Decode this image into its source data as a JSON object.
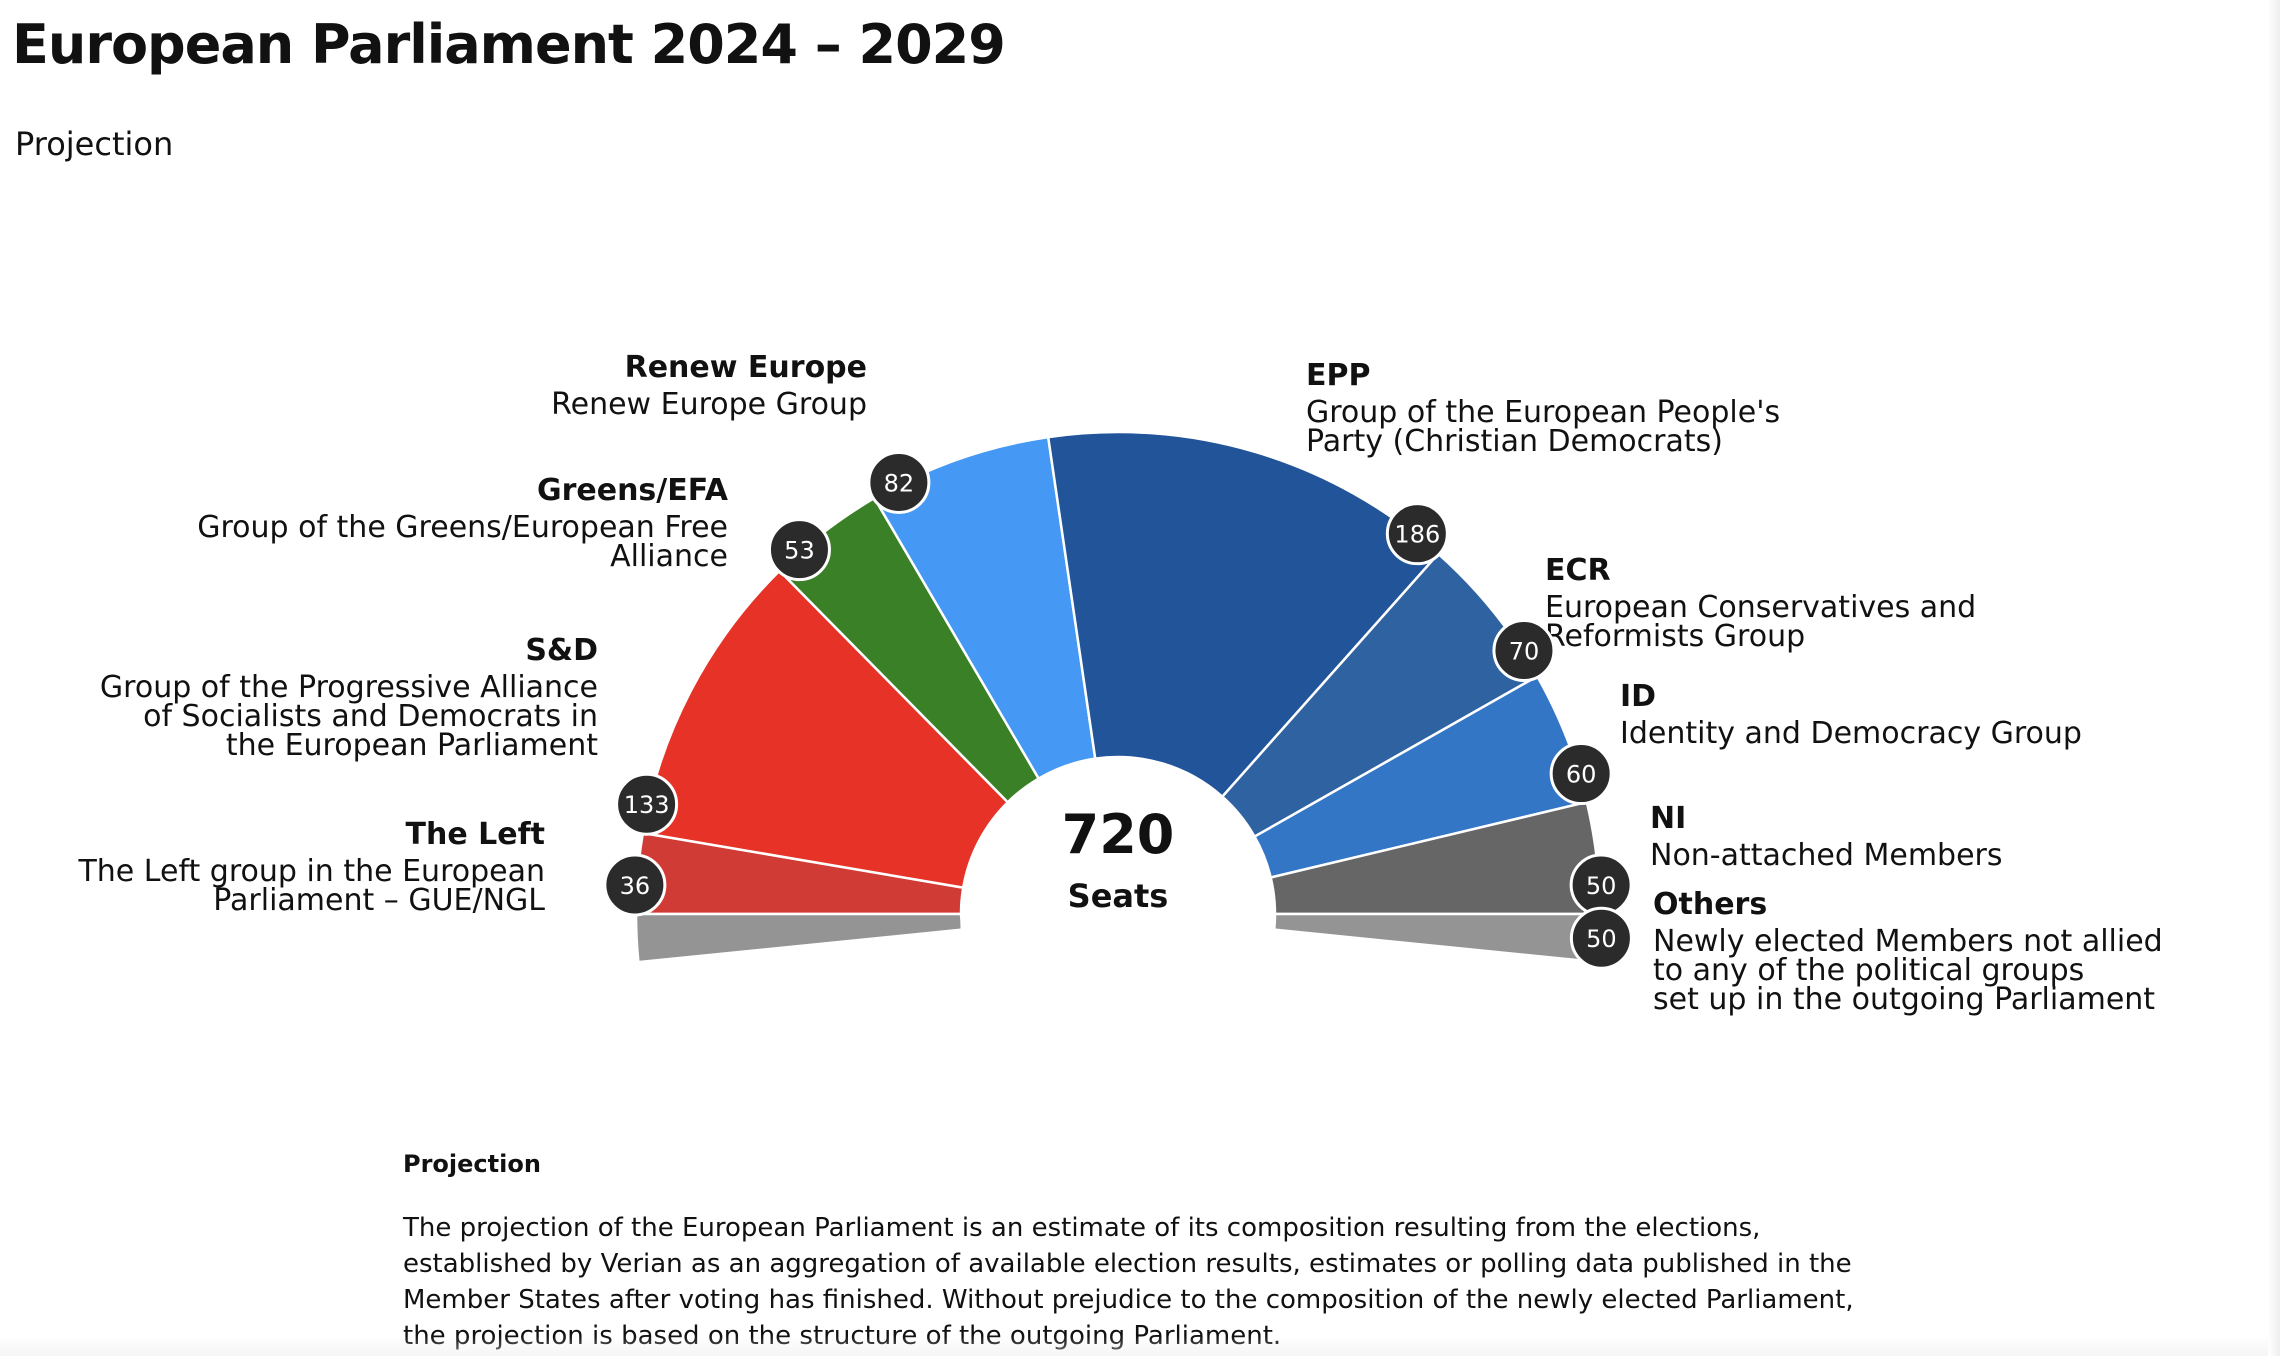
{
  "page": {
    "title": "European Parliament 2024 – 2029",
    "subtitle": "Projection"
  },
  "chart_data": {
    "type": "pie",
    "variant": "hemicycle",
    "title": "European Parliament 2024 – 2029",
    "subtitle": "Projection",
    "total": {
      "value": "720",
      "unit": "Seats"
    },
    "groups": [
      {
        "abbr": "The Left",
        "name_lines": [
          "The Left group in the European",
          "Parliament – GUE/NGL"
        ],
        "seats": 36,
        "color": "#d13b36",
        "side": "left"
      },
      {
        "abbr": "S&D",
        "name_lines": [
          "Group of the Progressive Alliance",
          "of Socialists and Democrats in",
          "the European Parliament"
        ],
        "seats": 133,
        "color": "#e63227",
        "side": "left"
      },
      {
        "abbr": "Greens/EFA",
        "name_lines": [
          "Group of the Greens/European Free",
          "Alliance"
        ],
        "seats": 53,
        "color": "#3a8026",
        "side": "left"
      },
      {
        "abbr": "Renew Europe",
        "name_lines": [
          "Renew Europe Group"
        ],
        "seats": 82,
        "color": "#4598f3",
        "side": "left"
      },
      {
        "abbr": "EPP",
        "name_lines": [
          "Group of the European People's",
          "Party (Christian Democrats)"
        ],
        "seats": 186,
        "color": "#22549a",
        "side": "right"
      },
      {
        "abbr": "ECR",
        "name_lines": [
          "European Conservatives and",
          "Reformists Group"
        ],
        "seats": 70,
        "color": "#2f62a0",
        "side": "right"
      },
      {
        "abbr": "ID",
        "name_lines": [
          "Identity and Democracy Group"
        ],
        "seats": 60,
        "color": "#3476c6",
        "side": "right"
      },
      {
        "abbr": "NI",
        "name_lines": [
          "Non-attached Members"
        ],
        "seats": 50,
        "color": "#666666",
        "side": "right"
      }
    ],
    "others": {
      "abbr": "Others",
      "name_lines": [
        "Newly elected Members not allied",
        "to any of the political groups",
        "set up in the outgoing Parliament"
      ],
      "seats": 50,
      "color": "#949494"
    }
  },
  "note": {
    "heading": "Projection",
    "lines": [
      "The projection of the European Parliament is an estimate of its composition resulting from the elections,",
      "established by Verian as an aggregation of available election results, estimates or polling data published in the",
      "Member States after voting has finished. Without prejudice to the composition of the newly elected Parliament,",
      "the projection is based on the structure of the outgoing Parliament."
    ]
  },
  "colors": {
    "badge": "#2b2b2b",
    "text": "#111111",
    "background": "#ffffff"
  }
}
